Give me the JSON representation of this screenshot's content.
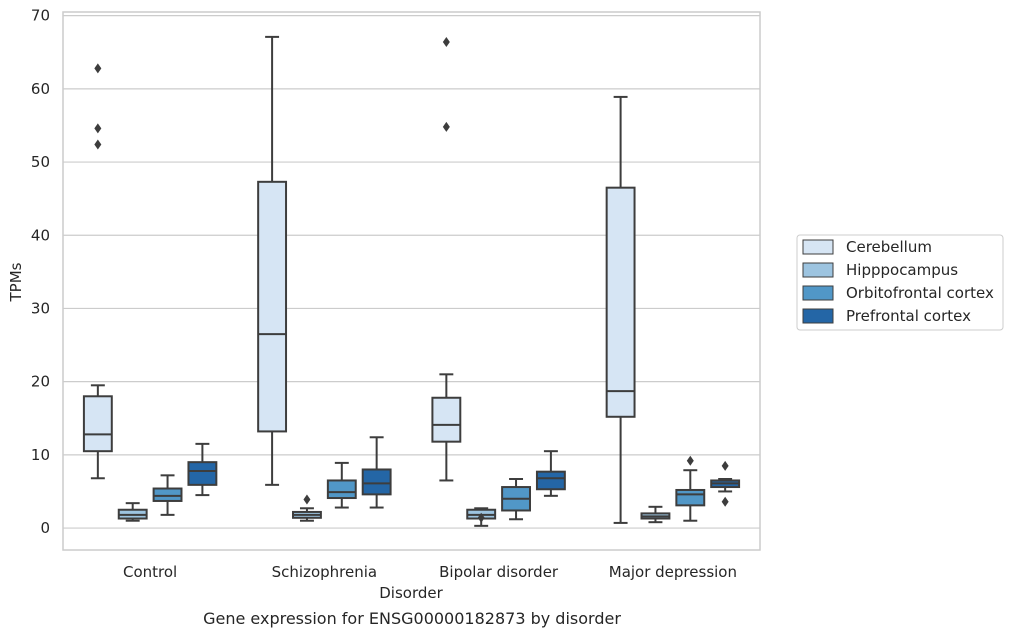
{
  "chart_data": {
    "type": "box",
    "caption": "Gene expression for ENSG00000182873 by disorder",
    "xlabel": "Disorder",
    "ylabel": "TPMs",
    "ylim": [
      -3,
      70.5
    ],
    "yticks": [
      0,
      10,
      20,
      30,
      40,
      50,
      60,
      70
    ],
    "categories": [
      "Control",
      "Schizophrenia",
      "Bipolar disorder",
      "Major depression"
    ],
    "grid": "horizontal",
    "legend_position": "right",
    "series": [
      {
        "name": "Cerebellum",
        "color": "#d6e5f4",
        "boxes": [
          {
            "whislo": 6.8,
            "q1": 10.5,
            "med": 12.8,
            "q3": 18.0,
            "whishi": 19.5,
            "fliers": [
              62.8,
              54.6,
              52.4
            ]
          },
          {
            "whislo": 5.9,
            "q1": 13.2,
            "med": 26.5,
            "q3": 47.3,
            "whishi": 67.1,
            "fliers": []
          },
          {
            "whislo": 6.5,
            "q1": 11.8,
            "med": 14.1,
            "q3": 17.8,
            "whishi": 21.0,
            "fliers": [
              66.4,
              54.8
            ]
          },
          {
            "whislo": 0.7,
            "q1": 15.2,
            "med": 18.7,
            "q3": 46.5,
            "whishi": 58.9,
            "fliers": []
          }
        ]
      },
      {
        "name": "Hipppocampus",
        "color": "#9dc4e0",
        "boxes": [
          {
            "whislo": 1.0,
            "q1": 1.3,
            "med": 1.8,
            "q3": 2.5,
            "whishi": 3.4,
            "fliers": []
          },
          {
            "whislo": 1.0,
            "q1": 1.4,
            "med": 1.8,
            "q3": 2.2,
            "whishi": 2.7,
            "fliers": [
              3.9
            ]
          },
          {
            "whislo": 0.3,
            "q1": 1.3,
            "med": 1.8,
            "q3": 2.5,
            "whishi": 2.7,
            "fliers": [
              1.4
            ]
          },
          {
            "whislo": 0.8,
            "q1": 1.3,
            "med": 1.6,
            "q3": 2.0,
            "whishi": 2.9,
            "fliers": []
          }
        ]
      },
      {
        "name": "Orbitofrontal cortex",
        "color": "#5197c7",
        "boxes": [
          {
            "whislo": 1.8,
            "q1": 3.7,
            "med": 4.4,
            "q3": 5.4,
            "whishi": 7.2,
            "fliers": []
          },
          {
            "whislo": 2.8,
            "q1": 4.1,
            "med": 4.9,
            "q3": 6.5,
            "whishi": 8.9,
            "fliers": []
          },
          {
            "whislo": 1.2,
            "q1": 2.4,
            "med": 4.0,
            "q3": 5.6,
            "whishi": 6.7,
            "fliers": []
          },
          {
            "whislo": 1.0,
            "q1": 3.1,
            "med": 4.6,
            "q3": 5.2,
            "whishi": 7.9,
            "fliers": [
              9.2
            ]
          }
        ]
      },
      {
        "name": "Prefrontal cortex",
        "color": "#2466a6",
        "boxes": [
          {
            "whislo": 4.5,
            "q1": 5.9,
            "med": 7.8,
            "q3": 9.0,
            "whishi": 11.5,
            "fliers": []
          },
          {
            "whislo": 2.8,
            "q1": 4.6,
            "med": 6.1,
            "q3": 8.0,
            "whishi": 12.4,
            "fliers": []
          },
          {
            "whislo": 4.4,
            "q1": 5.3,
            "med": 6.8,
            "q3": 7.7,
            "whishi": 10.5,
            "fliers": []
          },
          {
            "whislo": 5.0,
            "q1": 5.6,
            "med": 6.1,
            "q3": 6.5,
            "whishi": 6.7,
            "fliers": [
              8.5,
              3.6
            ]
          }
        ]
      }
    ]
  }
}
